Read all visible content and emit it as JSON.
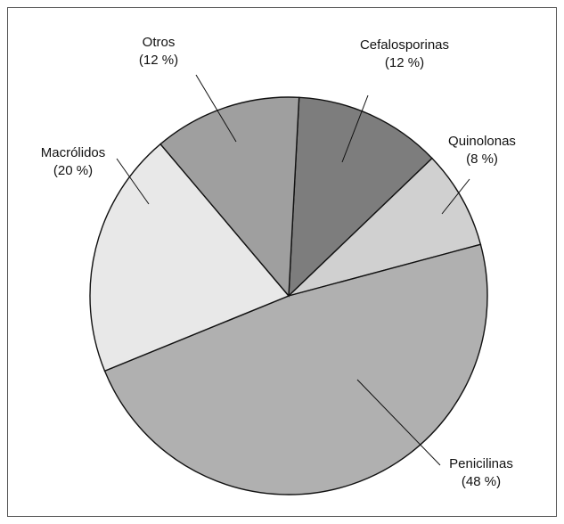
{
  "chart_data": {
    "type": "pie",
    "title": "",
    "slices": [
      {
        "label": "Cefalosporinas",
        "value": 12,
        "value_label": "(12 %)",
        "color": "#7d7d7d"
      },
      {
        "label": "Quinolonas",
        "value": 8,
        "value_label": "(8 %)",
        "color": "#d0d0d0"
      },
      {
        "label": "Penicilinas",
        "value": 48,
        "value_label": "(48 %)",
        "color": "#b0b0b0"
      },
      {
        "label": "Macrólidos",
        "value": 20,
        "value_label": "(20 %)",
        "color": "#e8e8e8"
      },
      {
        "label": "Otros",
        "value": 12,
        "value_label": "(12 %)",
        "color": "#9f9f9f"
      }
    ],
    "start_angle_deg": 3,
    "direction": "clockwise",
    "legend": "none",
    "labels": "outside-with-leader-lines"
  }
}
